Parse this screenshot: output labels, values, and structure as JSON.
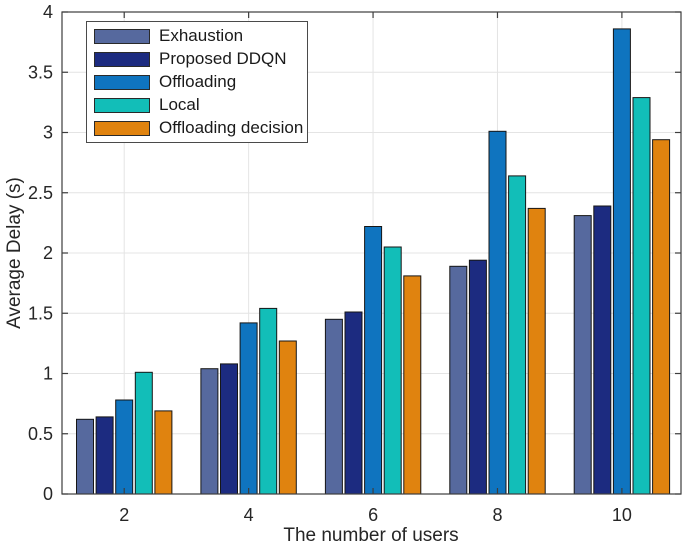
{
  "chart_data": {
    "type": "bar",
    "title": "",
    "xlabel": "The number of users",
    "ylabel": "Average Delay (s)",
    "categories": [
      2,
      4,
      6,
      8,
      10
    ],
    "series": [
      {
        "name": "Exhaustion",
        "color": "#56699e",
        "values": [
          0.62,
          1.04,
          1.45,
          1.89,
          2.31
        ]
      },
      {
        "name": "Proposed DDQN",
        "color": "#1c2b80",
        "values": [
          0.64,
          1.08,
          1.51,
          1.94,
          2.39
        ]
      },
      {
        "name": "Offloading",
        "color": "#0f74bf",
        "values": [
          0.78,
          1.42,
          2.22,
          3.01,
          3.86
        ]
      },
      {
        "name": "Local",
        "color": "#12beb8",
        "values": [
          1.01,
          1.54,
          2.05,
          2.64,
          3.29
        ]
      },
      {
        "name": "Offloading decision",
        "color": "#e0830f",
        "values": [
          0.69,
          1.27,
          1.81,
          2.37,
          2.94
        ]
      }
    ],
    "ylim": [
      0,
      4
    ],
    "ytick_step": 0.5,
    "ytick_labels": [
      "0",
      "0.5",
      "1",
      "1.5",
      "2",
      "2.5",
      "3",
      "3.5",
      "4"
    ],
    "xlim": [
      1,
      10.95
    ],
    "grid": true,
    "legend_position": "top-left",
    "bar_edge_color": "#161616",
    "grid_color": "#e4e4e4",
    "axis_color": "#3d3d3d",
    "tick_label_color": "#262626"
  }
}
